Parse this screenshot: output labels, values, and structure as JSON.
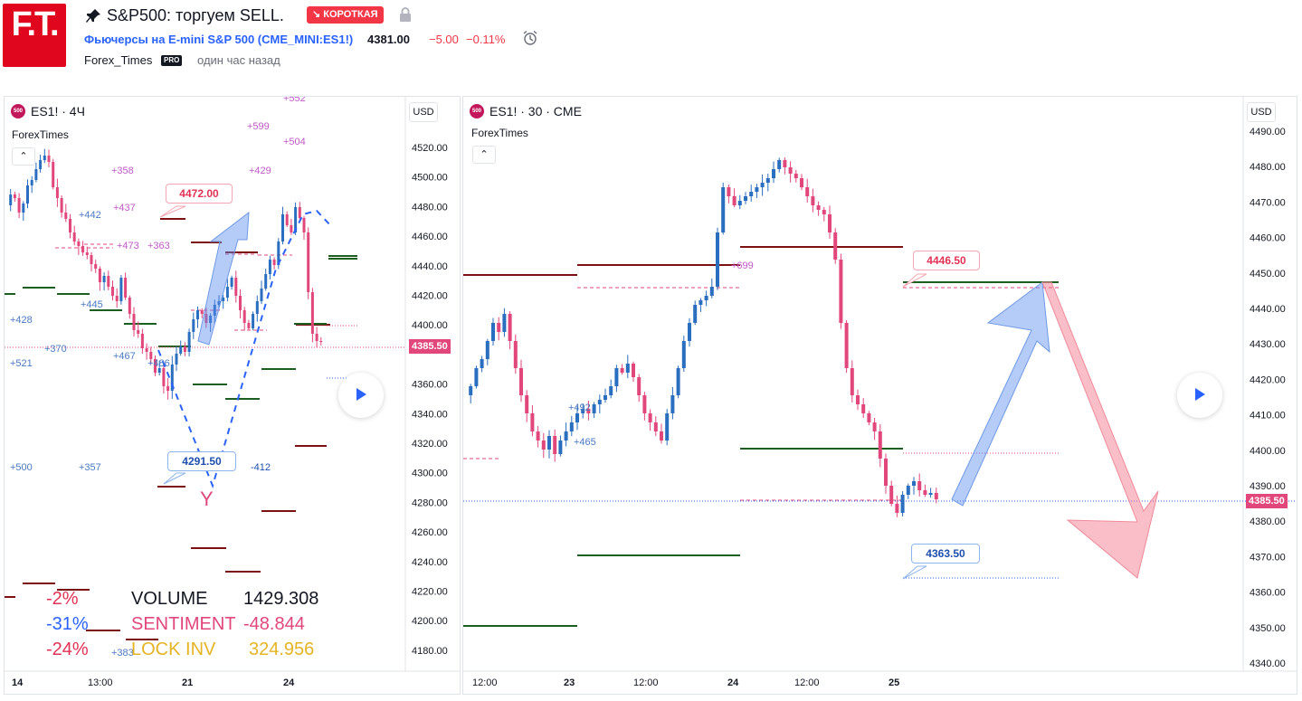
{
  "header": {
    "logo_text": "F.T.",
    "title": "S&P500: торгуем SELL.",
    "badge": "↘ КОРОТКАЯ",
    "symbol_link": "Фьючерсы на E-mini S&P 500 (CME_MINI:ES1!)",
    "price": "4381.00",
    "change": "−5.00",
    "change_pct": "−0.11%",
    "author": "Forex_Times",
    "pro": "PRO",
    "time_ago": "один час назад"
  },
  "left_chart": {
    "symbol": "ES1! · 4Ч",
    "symbol_icon": "500",
    "indicator": "ForexTimes",
    "currency": "USD",
    "y_ticks": [
      "4520.00",
      "4500.00",
      "4480.00",
      "4460.00",
      "4440.00",
      "4420.00",
      "4400.00",
      "4360.00",
      "4340.00",
      "4320.00",
      "4300.00",
      "4280.00",
      "4260.00",
      "4240.00",
      "4220.00",
      "4200.00",
      "4180.00"
    ],
    "last_price": "4385.50",
    "x_ticks": [
      "14",
      "13:00",
      "21",
      "24"
    ],
    "callout_top": "4472.00",
    "callout_bottom": "4291.50",
    "letter_y": "Y",
    "annotations": [
      "+599",
      "+504",
      "+429",
      "+358",
      "+437",
      "+442",
      "+473",
      "+363",
      "+445",
      "+428",
      "+370",
      "+521",
      "+467",
      "+486",
      "+500",
      "+357",
      "-412",
      "+383",
      "+552"
    ],
    "stats": {
      "row1_pct": "-2%",
      "row1_label": "VOLUME",
      "row1_value": "1429.308",
      "row2_pct": "-31%",
      "row2_label": "SENTIMENT",
      "row2_value": "-48.844",
      "row3_pct": "-24%",
      "row3_label": "LOCK INV",
      "row3_value": "324.956"
    }
  },
  "right_chart": {
    "symbol": "ES1! · 30 · CME",
    "symbol_icon": "500",
    "indicator": "ForexTimes",
    "currency": "USD",
    "y_ticks": [
      "4490.00",
      "4480.00",
      "4470.00",
      "4460.00",
      "4450.00",
      "4440.00",
      "4430.00",
      "4420.00",
      "4410.00",
      "4400.00",
      "4390.00",
      "4380.00",
      "4370.00",
      "4360.00",
      "4350.00",
      "4340.00"
    ],
    "last_price": "4385.50",
    "x_ticks": [
      "12:00",
      "23",
      "12:00",
      "24",
      "12:00",
      "25"
    ],
    "callout_top": "4446.50",
    "callout_bottom": "4363.50",
    "annotations": [
      "+492",
      "+465",
      "+699"
    ]
  },
  "colors": {
    "bull": "#2a6ebf",
    "bear": "#e1477a",
    "level_red": "#7b1113",
    "level_green": "#1b5e20",
    "accent_red": "#f23645",
    "link_blue": "#2962ff"
  }
}
